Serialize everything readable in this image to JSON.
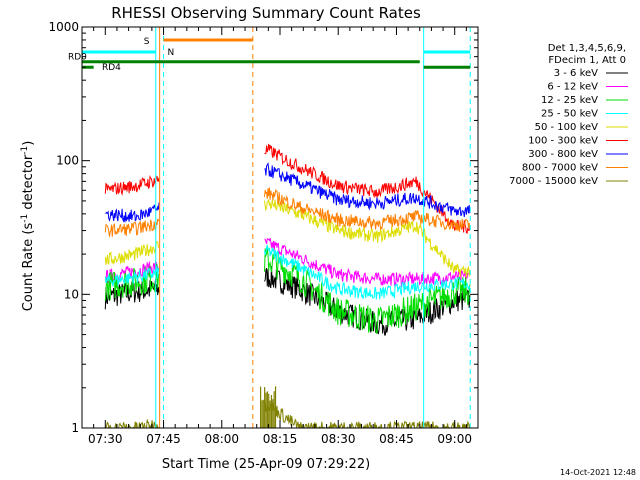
{
  "chart_data": {
    "type": "line",
    "title": "RHESSI Observing Summary Count Rates",
    "xlabel": "Start Time (25-Apr-09 07:29:22)",
    "ylabel_main": "Count Rate (s",
    "ylabel_sup": "-1",
    "ylabel_tail": " detector",
    "ylabel_close": ")",
    "yscale": "log",
    "ylim": [
      1,
      1000
    ],
    "xlim": [
      "07:24",
      "09:06"
    ],
    "x_ticks": [
      "07:30",
      "07:45",
      "08:00",
      "08:15",
      "08:30",
      "08:45",
      "09:00"
    ],
    "y_ticks": [
      "1",
      "10",
      "100",
      "1000"
    ],
    "timestamp": "14-Oct-2021 12:48",
    "legend": {
      "placement": "top-right",
      "header": [
        "Det 1,3,4,5,6,9,",
        "FDecim 1, Att 0"
      ]
    },
    "series": [
      {
        "name": "3 - 6 keV",
        "color": "#000000",
        "values": [
          9.5,
          10.5,
          13.5,
          11,
          7.5,
          6,
          6.5,
          9
        ]
      },
      {
        "name": "6 - 12 keV",
        "color": "#ff00ff",
        "values": [
          13.5,
          15,
          24,
          19,
          14,
          13,
          13,
          13.5
        ]
      },
      {
        "name": "12 - 25 keV",
        "color": "#00dd00",
        "values": [
          11.5,
          12.5,
          18,
          13.5,
          7.5,
          6.3,
          8,
          10.5
        ]
      },
      {
        "name": "25 - 50 keV",
        "color": "#00ffff",
        "values": [
          12.5,
          13.5,
          21,
          16,
          11,
          10,
          11.5,
          12
        ]
      },
      {
        "name": "50 - 100 keV",
        "color": "#dddd00",
        "values": [
          18,
          20,
          48,
          40,
          30,
          27,
          33,
          15
        ]
      },
      {
        "name": "100 - 300 keV",
        "color": "#ff0000",
        "values": [
          60,
          65,
          120,
          90,
          65,
          58,
          70,
          32
        ]
      },
      {
        "name": "300 - 800 keV",
        "color": "#0000ff",
        "values": [
          40,
          38,
          85,
          68,
          51,
          48,
          53,
          42
        ]
      },
      {
        "name": "800 - 7000 keV",
        "color": "#ff8000",
        "values": [
          30,
          31,
          57,
          45,
          36,
          34,
          38,
          33
        ]
      },
      {
        "name": "7000 - 15000 keV",
        "color": "#808000",
        "values": [
          1,
          1,
          1.5,
          1,
          1,
          1,
          1,
          1
        ]
      }
    ],
    "x": [
      "07:30",
      "07:38",
      "08:12",
      "08:20",
      "08:30",
      "08:40",
      "08:50",
      "09:00"
    ],
    "status_bars": [
      {
        "label": "S",
        "color": "#ff8000",
        "level": 800,
        "from": "07:45",
        "to": "08:08"
      },
      {
        "label": "N",
        "color": "#00ffff",
        "level": 650,
        "from": "07:45",
        "to": "07:45"
      },
      {
        "label": "RD0",
        "color": "#00ffff",
        "level": 650,
        "from": "07:24",
        "to": "07:45"
      },
      {
        "label": "RD4",
        "color": "#008000",
        "level": 500,
        "from": "07:24",
        "to": "07:27"
      }
    ],
    "annotations": [
      "S",
      "N",
      "RD0",
      "RD4"
    ]
  }
}
